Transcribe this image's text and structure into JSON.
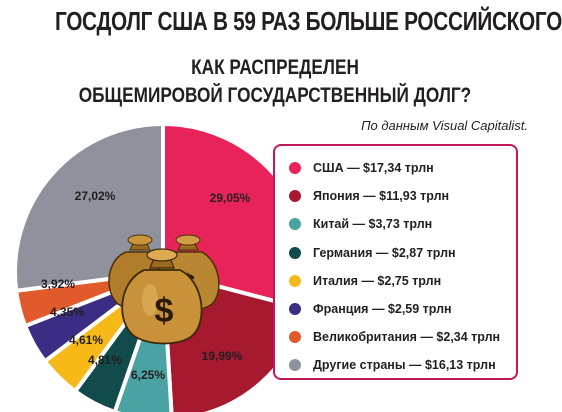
{
  "headline": "ГОСДОЛГ США В 59 РАЗ БОЛЬШЕ РОССИЙСКОГО",
  "subtitle_line1": "КАК РАСПРЕДЕЛЕН",
  "subtitle_line2": "ОБЩЕМИРОВОЙ ГОСУДАРСТВЕННЫЙ ДОЛГ?",
  "source": "По данным Visual Capitalist.",
  "legend": [
    {
      "label": "США — $17,34 трлн",
      "color": "#e8235a"
    },
    {
      "label": "Япония — $11,93 трлн",
      "color": "#a6192e"
    },
    {
      "label": "Китай — $3,73 трлн",
      "color": "#4aa3a2"
    },
    {
      "label": "Германия — $2,87 трлн",
      "color": "#124b4b"
    },
    {
      "label": "Италия — $2,75 трлн",
      "color": "#f6b918"
    },
    {
      "label": "Франция — $2,59 трлн",
      "color": "#3b2d83"
    },
    {
      "label": "Великобритания — $2,34 трлн",
      "color": "#e05a2b"
    },
    {
      "label": "Другие страны — $16,13 трлн",
      "color": "#8f929c"
    }
  ],
  "chart_data": {
    "type": "pie",
    "slices": [
      {
        "name": "США",
        "value": 29.05,
        "label": "29,05%",
        "color": "#e8235a"
      },
      {
        "name": "Япония",
        "value": 19.99,
        "label": "19,99%",
        "color": "#a6192e"
      },
      {
        "name": "Китай",
        "value": 6.25,
        "label": "6,25%",
        "color": "#4aa3a2"
      },
      {
        "name": "Германия",
        "value": 4.81,
        "label": "4,81%",
        "color": "#124b4b"
      },
      {
        "name": "Италия",
        "value": 4.61,
        "label": "4,61%",
        "color": "#f6b918"
      },
      {
        "name": "Франция",
        "value": 4.35,
        "label": "4,35%",
        "color": "#3b2d83"
      },
      {
        "name": "Великобритания",
        "value": 3.92,
        "label": "3,92%",
        "color": "#e05a2b"
      },
      {
        "name": "Другие страны",
        "value": 27.02,
        "label": "27,02%",
        "color": "#8f929c"
      }
    ],
    "center_icon": "money-bags-icon",
    "legend_position": "right"
  }
}
